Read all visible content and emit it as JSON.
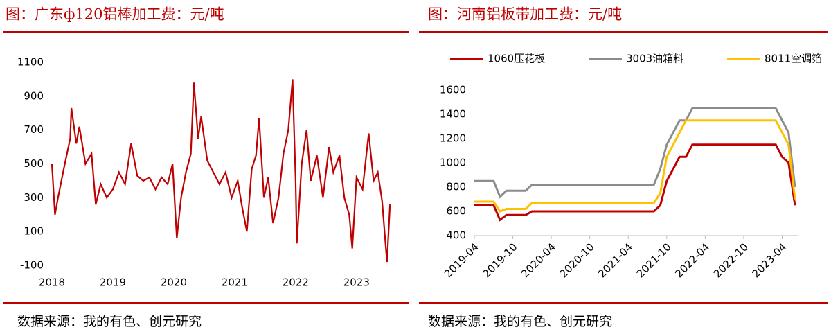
{
  "chart_data": [
    {
      "type": "line",
      "title": "图：广东ф120铝棒加工费：元/吨",
      "source": "数据来源：我的有色、创元研究",
      "color": "#c00000",
      "x": [
        2018.0,
        2018.05,
        2018.1,
        2018.2,
        2018.3,
        2018.32,
        2018.4,
        2018.45,
        2018.55,
        2018.65,
        2018.72,
        2018.8,
        2018.9,
        2019.0,
        2019.1,
        2019.2,
        2019.3,
        2019.4,
        2019.5,
        2019.6,
        2019.7,
        2019.8,
        2019.9,
        2019.98,
        2020.05,
        2020.12,
        2020.2,
        2020.28,
        2020.33,
        2020.4,
        2020.45,
        2020.55,
        2020.65,
        2020.75,
        2020.85,
        2020.95,
        2021.05,
        2021.12,
        2021.2,
        2021.28,
        2021.35,
        2021.4,
        2021.48,
        2021.55,
        2021.63,
        2021.72,
        2021.8,
        2021.88,
        2021.95,
        2022.0,
        2022.02,
        2022.1,
        2022.18,
        2022.25,
        2022.35,
        2022.45,
        2022.55,
        2022.62,
        2022.72,
        2022.8,
        2022.88,
        2022.93,
        2023.0,
        2023.1,
        2023.2,
        2023.28,
        2023.35,
        2023.42,
        2023.5,
        2023.55
      ],
      "values": [
        500,
        200,
        300,
        480,
        650,
        830,
        620,
        720,
        500,
        560,
        260,
        380,
        300,
        350,
        450,
        380,
        620,
        430,
        400,
        420,
        350,
        420,
        380,
        500,
        60,
        300,
        450,
        560,
        980,
        650,
        780,
        520,
        450,
        380,
        450,
        300,
        400,
        250,
        100,
        470,
        550,
        770,
        300,
        420,
        150,
        300,
        560,
        700,
        1000,
        400,
        30,
        500,
        700,
        400,
        550,
        300,
        600,
        450,
        550,
        300,
        200,
        0,
        420,
        350,
        680,
        400,
        450,
        280,
        -80,
        260
      ],
      "xlim": [
        2018,
        2023.65
      ],
      "xticks": [
        2018,
        2019,
        2020,
        2021,
        2022,
        2023
      ],
      "ylim": [
        -100,
        1100
      ],
      "yticks": [
        -100,
        100,
        300,
        500,
        700,
        900,
        1100
      ]
    },
    {
      "type": "line",
      "title": "图：河南铝板带加工费：元/吨",
      "source": "数据来源：我的有色、创元研究",
      "x": [
        "2019-04",
        "2019-05",
        "2019-06",
        "2019-07",
        "2019-08",
        "2019-09",
        "2019-10",
        "2019-11",
        "2019-12",
        "2020-01",
        "2020-02",
        "2020-03",
        "2020-04",
        "2020-05",
        "2020-06",
        "2020-07",
        "2020-08",
        "2020-09",
        "2020-10",
        "2020-11",
        "2020-12",
        "2021-01",
        "2021-02",
        "2021-03",
        "2021-04",
        "2021-05",
        "2021-06",
        "2021-07",
        "2021-08",
        "2021-09",
        "2021-10",
        "2021-11",
        "2021-12",
        "2022-01",
        "2022-02",
        "2022-03",
        "2022-04",
        "2022-05",
        "2022-06",
        "2022-07",
        "2022-08",
        "2022-09",
        "2022-10",
        "2022-11",
        "2022-12",
        "2023-01",
        "2023-02",
        "2023-03",
        "2023-04",
        "2023-05",
        "2023-06"
      ],
      "series": [
        {
          "name": "1060压花板",
          "color": "#c00000",
          "values": [
            650,
            650,
            650,
            650,
            530,
            570,
            570,
            570,
            570,
            600,
            600,
            600,
            600,
            600,
            600,
            600,
            600,
            600,
            600,
            600,
            600,
            600,
            600,
            600,
            600,
            600,
            600,
            600,
            600,
            650,
            850,
            950,
            1050,
            1050,
            1150,
            1150,
            1150,
            1150,
            1150,
            1150,
            1150,
            1150,
            1150,
            1150,
            1150,
            1150,
            1150,
            1150,
            1050,
            1000,
            650
          ]
        },
        {
          "name": "3003油箱料",
          "color": "#8c8c8c",
          "values": [
            850,
            850,
            850,
            850,
            720,
            770,
            770,
            770,
            770,
            820,
            820,
            820,
            820,
            820,
            820,
            820,
            820,
            820,
            820,
            820,
            820,
            820,
            820,
            820,
            820,
            820,
            820,
            820,
            820,
            950,
            1150,
            1250,
            1350,
            1350,
            1450,
            1450,
            1450,
            1450,
            1450,
            1450,
            1450,
            1450,
            1450,
            1450,
            1450,
            1450,
            1450,
            1450,
            1350,
            1250,
            800
          ]
        },
        {
          "name": "8011空调箔",
          "color": "#ffc000",
          "values": [
            680,
            680,
            680,
            680,
            600,
            620,
            620,
            620,
            620,
            670,
            670,
            670,
            670,
            670,
            670,
            670,
            670,
            670,
            670,
            670,
            670,
            670,
            670,
            670,
            670,
            670,
            670,
            670,
            670,
            750,
            1050,
            1150,
            1250,
            1350,
            1350,
            1350,
            1350,
            1350,
            1350,
            1350,
            1350,
            1350,
            1350,
            1350,
            1350,
            1350,
            1350,
            1350,
            1250,
            1150,
            700
          ]
        }
      ],
      "xticks": [
        "2019-04",
        "2019-10",
        "2020-04",
        "2020-10",
        "2021-04",
        "2021-10",
        "2022-04",
        "2022-10",
        "2023-04"
      ],
      "ylim": [
        400,
        1600
      ],
      "yticks": [
        400,
        600,
        800,
        1000,
        1200,
        1400,
        1600
      ],
      "legend": "top"
    }
  ]
}
